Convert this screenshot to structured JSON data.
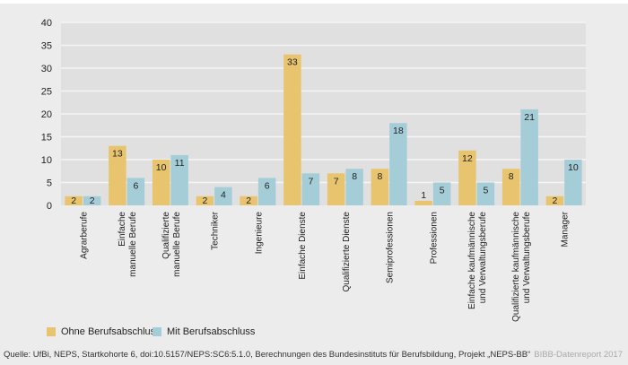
{
  "chart_data": {
    "type": "bar",
    "title": "",
    "xlabel": "",
    "ylabel": "",
    "ylim": [
      0,
      40
    ],
    "yticks": [
      0,
      5,
      10,
      15,
      20,
      25,
      30,
      35,
      40
    ],
    "grid": true,
    "legend_position": "bottom-left",
    "categories": [
      [
        "Agrarberufe"
      ],
      [
        "Einfache",
        "manuelle Berufe"
      ],
      [
        "Qualifizierte",
        "manuelle Berufe"
      ],
      [
        "Techniker"
      ],
      [
        "Ingenieure"
      ],
      [
        "Einfache Dienste"
      ],
      [
        "Qualifizierte Dienste"
      ],
      [
        "Semiprofessionen"
      ],
      [
        "Professionen"
      ],
      [
        "Einfache kaufmännische",
        "und Verwaltungsberufe"
      ],
      [
        "Qualifizierte kaufmännische",
        "und Verwaltungsberufe"
      ],
      [
        "Manager"
      ]
    ],
    "series": [
      {
        "name": "Ohne Berufsabschluss",
        "color": "#e9c46e",
        "values": [
          2,
          13,
          10,
          2,
          2,
          33,
          7,
          8,
          1,
          12,
          8,
          2
        ]
      },
      {
        "name": "Mit Berufsabschluss",
        "color": "#a5cdd8",
        "values": [
          2,
          6,
          11,
          4,
          6,
          7,
          8,
          18,
          5,
          5,
          21,
          10
        ]
      }
    ]
  },
  "legend": {
    "items": [
      {
        "label": "Ohne Berufsabschluss",
        "color": "#e9c46e"
      },
      {
        "label": "Mit Berufsabschluss",
        "color": "#a5cdd8"
      }
    ]
  },
  "footer": {
    "source": "Quelle: UfBi, NEPS, Startkohorte 6, doi:10.5157/NEPS:SC6:5.1.0, Berechnungen des Bundesinstituts für Berufsbildung, Projekt „NEPS-BB“",
    "credit": "BIBB-Datenreport 2017"
  },
  "colors": {
    "background": "#ececec",
    "plot_background": "#e0e0e0",
    "grid": "#f5f5f5"
  }
}
